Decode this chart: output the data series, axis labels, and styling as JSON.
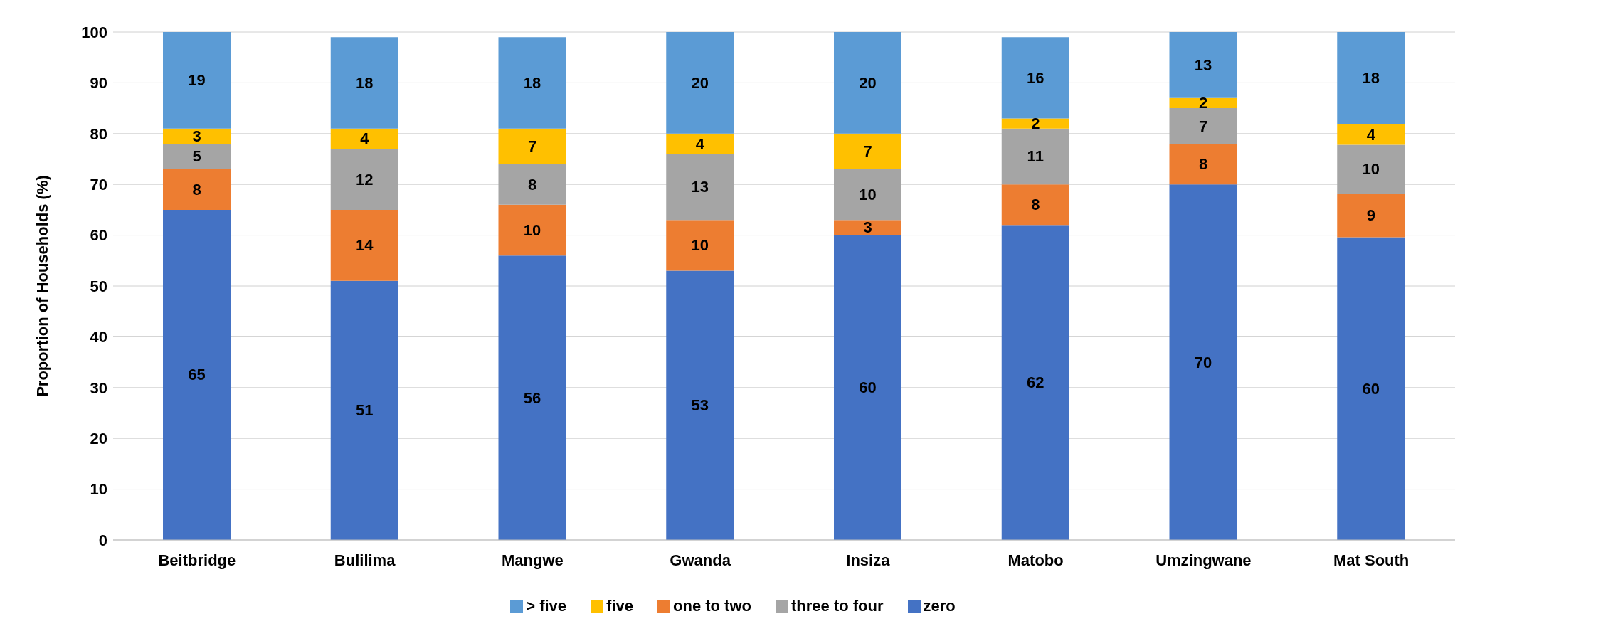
{
  "chart_data": {
    "type": "bar",
    "stacked": true,
    "ylabel": "Proportion of Households (%)",
    "categories": [
      "Beitbridge",
      "Bulilima",
      "Mangwe",
      "Gwanda",
      "Insiza",
      "Matobo",
      "Umzingwane",
      "Mat South"
    ],
    "series": [
      {
        "name": "zero",
        "color": "#4472c4",
        "values": [
          65,
          51,
          56,
          53,
          60,
          62,
          70,
          59.6
        ],
        "value_labels": [
          "65",
          "51",
          "56",
          "53",
          "60",
          "62",
          "70",
          "60"
        ]
      },
      {
        "name": "one to two",
        "color": "#ed7d31",
        "values": [
          8,
          14,
          10,
          10,
          3,
          8,
          8,
          8.6
        ],
        "value_labels": [
          "8",
          "14",
          "10",
          "10",
          "3",
          "8",
          "8",
          "9"
        ]
      },
      {
        "name": "three to four",
        "color": "#a5a5a5",
        "values": [
          5,
          12,
          8,
          13,
          10,
          11,
          7,
          9.6
        ],
        "value_labels": [
          "5",
          "12",
          "8",
          "13",
          "10",
          "11",
          "7",
          "10"
        ]
      },
      {
        "name": "five",
        "color": "#ffc000",
        "values": [
          3,
          4,
          7,
          4,
          7,
          2,
          2,
          4
        ],
        "value_labels": [
          "3",
          "4",
          "7",
          "4",
          "7",
          "2",
          "2",
          "4"
        ]
      },
      {
        "name": "> five",
        "color": "#5b9bd5",
        "values": [
          19,
          18,
          18,
          20,
          20,
          16,
          13,
          18.2
        ],
        "value_labels": [
          "19",
          "18",
          "18",
          "20",
          "20",
          "16",
          "13",
          "18"
        ]
      }
    ],
    "ylim": [
      0,
      100
    ],
    "yticks": [
      0,
      10,
      20,
      30,
      40,
      50,
      60,
      70,
      80,
      90,
      100
    ],
    "grid": "y",
    "legend": "bottom"
  }
}
